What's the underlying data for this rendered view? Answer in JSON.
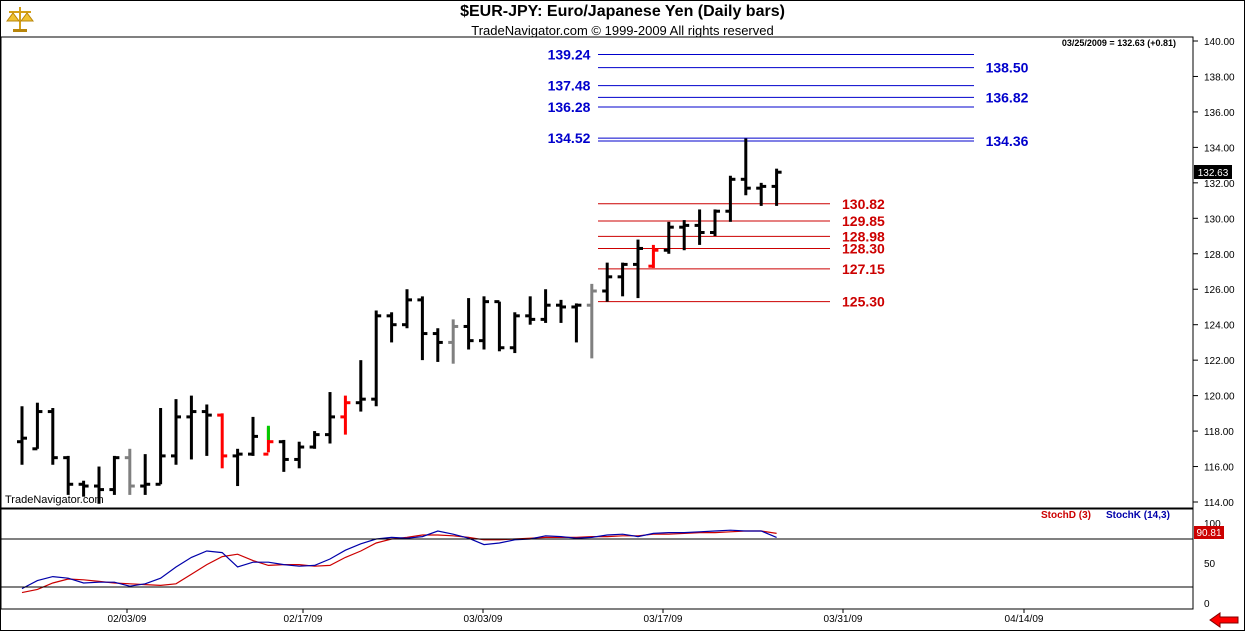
{
  "header": {
    "title": "$EUR-JPY:  Euro/Japanese Yen  (Daily bars)",
    "copyright": "TradeNavigator.com © 1999-2009 All rights reserved",
    "logo_icon": "scales-icon"
  },
  "readout": "03/25/2009 = 132.63 (+0.81)",
  "watermark": "TradeNavigator.com",
  "colors": {
    "bar_up": "#000000",
    "bar_gray": "#808080",
    "bar_red": "#ff0000",
    "bar_green": "#00cc00",
    "blue_level": "#0000cc",
    "red_level": "#cc0000",
    "stoch_d": "#cc0000",
    "stoch_k": "#0000aa"
  },
  "chart_data": [
    {
      "type": "ohlc",
      "ylim": [
        113,
        141
      ],
      "y_ticks": [
        "114.00",
        "116.00",
        "118.00",
        "120.00",
        "122.00",
        "124.00",
        "126.00",
        "128.00",
        "130.00",
        "132.00",
        "134.00",
        "136.00",
        "138.00",
        "140.00"
      ],
      "x_ticks": [
        "02/03/09",
        "02/17/09",
        "03/03/09",
        "03/17/09",
        "03/31/09",
        "04/14/09"
      ],
      "last_price": "132.63",
      "bars": [
        {
          "o": 117.4,
          "h": 119.4,
          "l": 116.1,
          "c": 117.6,
          "col": "bar_up"
        },
        {
          "o": 117.0,
          "h": 119.6,
          "l": 117.0,
          "c": 119.1,
          "col": "bar_up"
        },
        {
          "o": 119.1,
          "h": 119.3,
          "l": 116.1,
          "c": 116.5,
          "col": "bar_up"
        },
        {
          "o": 116.5,
          "h": 116.6,
          "l": 114.4,
          "c": 115.0,
          "col": "bar_up"
        },
        {
          "o": 115.0,
          "h": 115.2,
          "l": 114.3,
          "c": 114.9,
          "col": "bar_up"
        },
        {
          "o": 114.9,
          "h": 116.0,
          "l": 113.9,
          "c": 114.7,
          "col": "bar_up"
        },
        {
          "o": 114.7,
          "h": 116.6,
          "l": 114.4,
          "c": 116.5,
          "col": "bar_up"
        },
        {
          "o": 116.5,
          "h": 117.0,
          "l": 114.4,
          "c": 114.9,
          "col": "bar_gray"
        },
        {
          "o": 114.9,
          "h": 116.7,
          "l": 114.4,
          "c": 115.0,
          "col": "bar_up"
        },
        {
          "o": 115.0,
          "h": 119.3,
          "l": 115.0,
          "c": 116.6,
          "col": "bar_up"
        },
        {
          "o": 116.6,
          "h": 119.8,
          "l": 116.1,
          "c": 118.8,
          "col": "bar_up"
        },
        {
          "o": 118.8,
          "h": 120.0,
          "l": 116.4,
          "c": 119.1,
          "col": "bar_up"
        },
        {
          "o": 119.1,
          "h": 119.5,
          "l": 116.6,
          "c": 118.9,
          "col": "bar_up"
        },
        {
          "o": 118.9,
          "h": 119.0,
          "l": 115.9,
          "c": 116.6,
          "col": "bar_red"
        },
        {
          "o": 116.6,
          "h": 117.0,
          "l": 114.9,
          "c": 116.7,
          "col": "bar_up"
        },
        {
          "o": 116.7,
          "h": 118.8,
          "l": 116.6,
          "c": 117.7,
          "col": "bar_up"
        },
        {
          "o": 116.7,
          "h": 118.2,
          "l": 116.8,
          "c": 117.4,
          "col": "bar_red"
        },
        {
          "o": 117.4,
          "h": 117.5,
          "l": 115.7,
          "c": 116.4,
          "col": "bar_up"
        },
        {
          "o": 116.4,
          "h": 117.4,
          "l": 115.9,
          "c": 117.1,
          "col": "bar_up"
        },
        {
          "o": 117.1,
          "h": 118.0,
          "l": 117.0,
          "c": 117.8,
          "col": "bar_up"
        },
        {
          "o": 117.8,
          "h": 120.2,
          "l": 117.3,
          "c": 118.8,
          "col": "bar_up"
        },
        {
          "o": 118.8,
          "h": 120.0,
          "l": 117.8,
          "c": 119.6,
          "col": "bar_red"
        },
        {
          "o": 119.6,
          "h": 122.0,
          "l": 119.1,
          "c": 119.8,
          "col": "bar_up"
        },
        {
          "o": 119.8,
          "h": 124.8,
          "l": 119.4,
          "c": 124.5,
          "col": "bar_up"
        },
        {
          "o": 124.5,
          "h": 124.7,
          "l": 123.0,
          "c": 124.0,
          "col": "bar_up"
        },
        {
          "o": 124.0,
          "h": 126.0,
          "l": 123.8,
          "c": 125.4,
          "col": "bar_up"
        },
        {
          "o": 125.4,
          "h": 125.6,
          "l": 122.0,
          "c": 123.5,
          "col": "bar_up"
        },
        {
          "o": 123.5,
          "h": 123.8,
          "l": 121.9,
          "c": 123.0,
          "col": "bar_up"
        },
        {
          "o": 123.0,
          "h": 124.3,
          "l": 121.8,
          "c": 123.9,
          "col": "bar_gray"
        },
        {
          "o": 123.9,
          "h": 125.5,
          "l": 122.6,
          "c": 123.1,
          "col": "bar_up"
        },
        {
          "o": 123.1,
          "h": 125.6,
          "l": 122.6,
          "c": 125.3,
          "col": "bar_up"
        },
        {
          "o": 125.3,
          "h": 125.3,
          "l": 122.5,
          "c": 122.7,
          "col": "bar_up"
        },
        {
          "o": 122.7,
          "h": 124.7,
          "l": 122.4,
          "c": 124.5,
          "col": "bar_up"
        },
        {
          "o": 124.5,
          "h": 125.6,
          "l": 124.0,
          "c": 124.3,
          "col": "bar_up"
        },
        {
          "o": 124.3,
          "h": 126.0,
          "l": 124.1,
          "c": 125.1,
          "col": "bar_up"
        },
        {
          "o": 125.1,
          "h": 125.4,
          "l": 124.1,
          "c": 125.0,
          "col": "bar_up"
        },
        {
          "o": 125.0,
          "h": 125.2,
          "l": 123.0,
          "c": 125.1,
          "col": "bar_up"
        },
        {
          "o": 125.1,
          "h": 126.3,
          "l": 122.1,
          "c": 125.9,
          "col": "bar_gray"
        },
        {
          "o": 125.9,
          "h": 127.5,
          "l": 125.3,
          "c": 126.7,
          "col": "bar_up"
        },
        {
          "o": 126.7,
          "h": 127.5,
          "l": 125.6,
          "c": 127.4,
          "col": "bar_up"
        },
        {
          "o": 127.4,
          "h": 128.8,
          "l": 125.5,
          "c": 128.3,
          "col": "bar_up"
        },
        {
          "o": 127.3,
          "h": 128.5,
          "l": 127.2,
          "c": 128.2,
          "col": "bar_red"
        },
        {
          "o": 128.2,
          "h": 129.8,
          "l": 128.0,
          "c": 129.5,
          "col": "bar_up"
        },
        {
          "o": 129.5,
          "h": 129.9,
          "l": 128.2,
          "c": 129.6,
          "col": "bar_up"
        },
        {
          "o": 129.6,
          "h": 130.5,
          "l": 128.5,
          "c": 129.2,
          "col": "bar_up"
        },
        {
          "o": 129.2,
          "h": 130.5,
          "l": 129.0,
          "c": 130.4,
          "col": "bar_up"
        },
        {
          "o": 130.4,
          "h": 132.4,
          "l": 129.8,
          "c": 132.2,
          "col": "bar_up"
        },
        {
          "o": 132.2,
          "h": 134.5,
          "l": 131.3,
          "c": 131.7,
          "col": "bar_up"
        },
        {
          "o": 131.7,
          "h": 132.0,
          "l": 130.7,
          "c": 131.8,
          "col": "bar_up"
        },
        {
          "o": 131.8,
          "h": 132.8,
          "l": 130.7,
          "c": 132.6,
          "col": "bar_up"
        }
      ],
      "blue_levels": [
        {
          "value": 139.24,
          "label": "139.24",
          "side": "left"
        },
        {
          "value": 138.5,
          "label": "138.50",
          "side": "right"
        },
        {
          "value": 137.48,
          "label": "137.48",
          "side": "left"
        },
        {
          "value": 136.82,
          "label": "136.82",
          "side": "right"
        },
        {
          "value": 136.28,
          "label": "136.28",
          "side": "left"
        },
        {
          "value": 134.52,
          "label": "134.52",
          "side": "left"
        },
        {
          "value": 134.36,
          "label": "134.36",
          "side": "right"
        }
      ],
      "red_levels": [
        {
          "value": 130.82,
          "label": "130.82"
        },
        {
          "value": 129.85,
          "label": "129.85"
        },
        {
          "value": 128.98,
          "label": "128.98"
        },
        {
          "value": 128.3,
          "label": "128.30"
        },
        {
          "value": 127.15,
          "label": "127.15"
        },
        {
          "value": 125.3,
          "label": "125.30"
        }
      ]
    },
    {
      "type": "line",
      "ylim": [
        -5,
        110
      ],
      "y_ticks": [
        "0",
        "20",
        "50",
        "80",
        "100"
      ],
      "last_value": "90.81",
      "legend": [
        {
          "name": "StochD (3)",
          "color": "stoch_d"
        },
        {
          "name": "StochK (14,3)",
          "color": "stoch_k"
        }
      ],
      "series": [
        {
          "name": "StochD (3)",
          "color": "stoch_d",
          "values": [
            13,
            17,
            25,
            30,
            29,
            27,
            25,
            24,
            23,
            22,
            24,
            36,
            48,
            58,
            61,
            53,
            47,
            48,
            48,
            46,
            47,
            57,
            65,
            75,
            80,
            82,
            85,
            85,
            84,
            82,
            79,
            79,
            80,
            81,
            82,
            82,
            82,
            83,
            83,
            84,
            84,
            86,
            86,
            87,
            88,
            88,
            89,
            90,
            90,
            87
          ]
        },
        {
          "name": "StochK (14,3)",
          "color": "stoch_k",
          "values": [
            18,
            28,
            33,
            31,
            25,
            26,
            26,
            21,
            24,
            31,
            45,
            57,
            65,
            63,
            45,
            51,
            51,
            48,
            46,
            47,
            55,
            66,
            74,
            80,
            82,
            81,
            83,
            90,
            86,
            81,
            73,
            75,
            79,
            80,
            84,
            83,
            81,
            82,
            85,
            86,
            83,
            87,
            88,
            88,
            89,
            90,
            91,
            90,
            90,
            82
          ]
        }
      ]
    }
  ]
}
